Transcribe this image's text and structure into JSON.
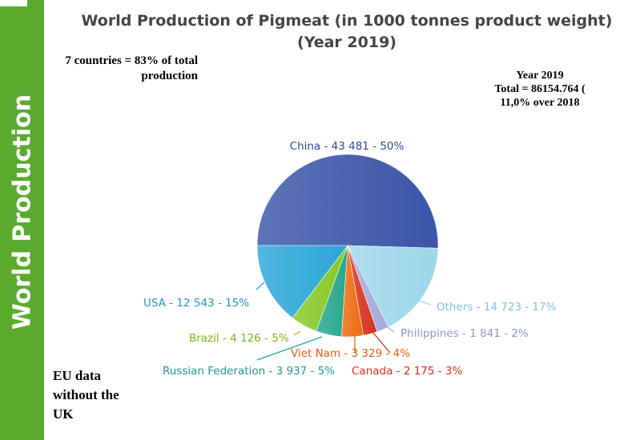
{
  "sidebar": {
    "label": "World Production"
  },
  "header": {
    "title_line1": "World Production of Pigmeat (in 1000 tonnes product weight)",
    "title_line2": "(Year 2019)"
  },
  "notes": {
    "left": "7 countries = 83% of total production",
    "right_line1": "Year 2019",
    "right_line2": "Total = 86154.764 (",
    "right_line3": "11,0% over 2018",
    "eu": "EU data without the UK"
  },
  "chart_data": {
    "type": "pie",
    "title": "World Production of Pigmeat (in 1000 tonnes product weight) (Year 2019)",
    "unit": "1000 tonnes product weight",
    "slices": [
      {
        "label": "China - 43 481 - 50%",
        "name": "China",
        "value": 43481,
        "percent": 50,
        "color": "#3a55a8",
        "text_color": "#2f4aa0"
      },
      {
        "label": "Others - 14 723 - 17%",
        "name": "Others",
        "value": 14723,
        "percent": 17,
        "color": "#9dd6ea",
        "text_color": "#7fc2dd"
      },
      {
        "label": "Philippines - 1 841 - 2%",
        "name": "Philippines",
        "value": 1841,
        "percent": 2,
        "color": "#a4abd8",
        "text_color": "#8f97c9"
      },
      {
        "label": "Canada - 2 175 - 3%",
        "name": "Canada",
        "value": 2175,
        "percent": 3,
        "color": "#d7301c",
        "text_color": "#d7301c"
      },
      {
        "label": "Viet Nam - 3 329 - 4%",
        "name": "Viet Nam",
        "value": 3329,
        "percent": 4,
        "color": "#ee6a10",
        "text_color": "#e45c0b"
      },
      {
        "label": "Russian Federation - 3 937 - 5%",
        "name": "Russian Federation",
        "value": 3937,
        "percent": 5,
        "color": "#27a68d",
        "text_color": "#1f9c83"
      },
      {
        "label": "Brazil - 4 126 - 5%",
        "name": "Brazil",
        "value": 4126,
        "percent": 5,
        "color": "#86c822",
        "text_color": "#78b61a"
      },
      {
        "label": "USA - 12 543 - 15%",
        "name": "USA",
        "value": 12543,
        "percent": 15,
        "color": "#2aa6d8",
        "text_color": "#2596c8"
      }
    ]
  }
}
